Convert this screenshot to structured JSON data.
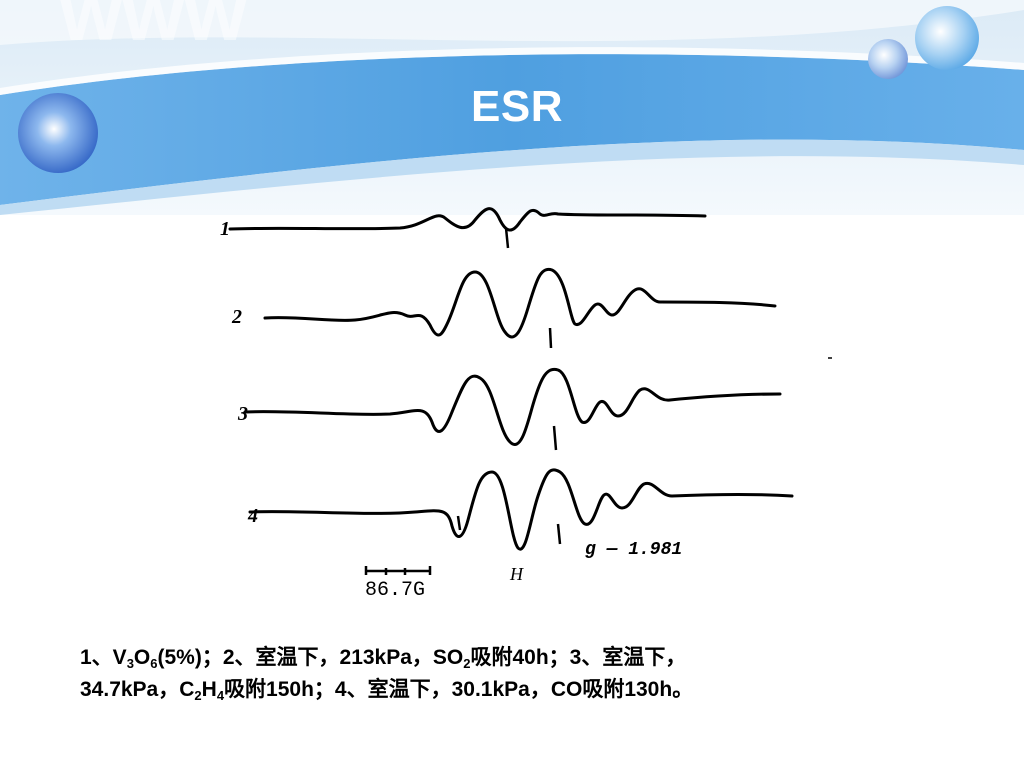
{
  "slide": {
    "title": "ESR",
    "accent_color": "#5aa8e6",
    "decor_text": "www"
  },
  "figure": {
    "trace_labels": [
      "1",
      "2",
      "3",
      "4"
    ],
    "scale_label": "86.7G",
    "field_label": "H",
    "g_value_label": "g — 1.981"
  },
  "caption": {
    "parts": [
      {
        "t": "1、V"
      },
      {
        "sub": "3"
      },
      {
        "t": "O"
      },
      {
        "sub": "6"
      },
      {
        "t": "(5%)；2、室温下，213kPa，SO"
      },
      {
        "sub": "2"
      },
      {
        "t": "吸附40h；3、室温下，"
      },
      {
        "br": true
      },
      {
        "t": "34.7kPa，C"
      },
      {
        "sub": "2"
      },
      {
        "t": "H"
      },
      {
        "sub": "4"
      },
      {
        "t": "吸附150h；4、室温下，30.1kPa，CO吸附130h。"
      }
    ]
  }
}
